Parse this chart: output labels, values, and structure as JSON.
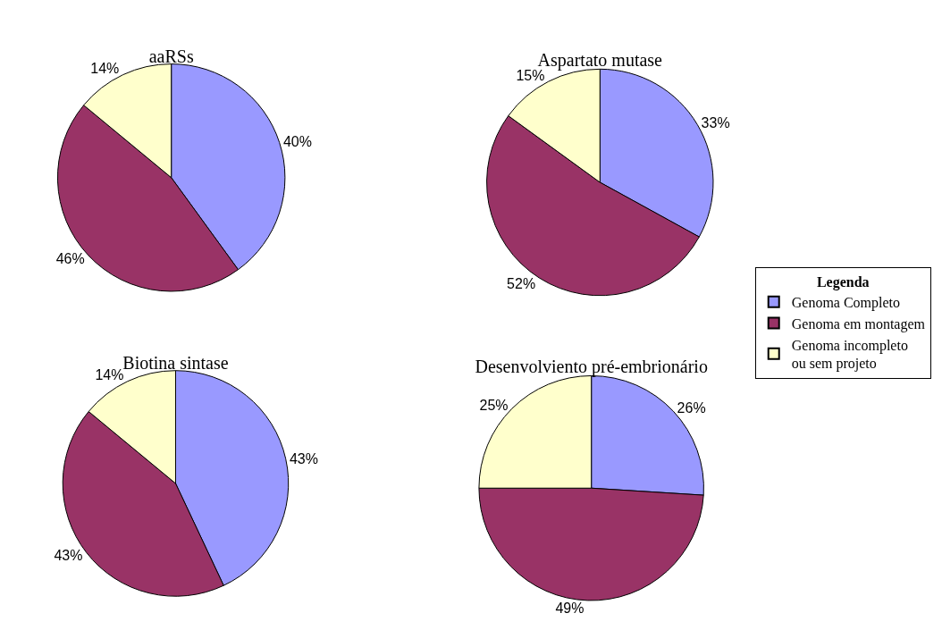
{
  "chart_data": [
    {
      "type": "pie",
      "title": "aaRSs",
      "categories": [
        "Genoma Completo",
        "Genoma em montagem",
        "Genoma incompleto ou sem projeto"
      ],
      "values": [
        40,
        46,
        14
      ],
      "colors": [
        "#9999ff",
        "#993366",
        "#ffffcc"
      ],
      "value_labels": [
        "40%",
        "46%",
        "14%"
      ],
      "legend": "right",
      "legend_title": "Legenda"
    },
    {
      "type": "pie",
      "title": "Aspartato mutase",
      "categories": [
        null,
        null,
        null
      ],
      "values": [
        33,
        52,
        15
      ],
      "colors": [
        "#9999ff",
        "#993366",
        "#ffffcc"
      ],
      "value_labels": [
        "33%",
        "52%",
        "15%"
      ]
    },
    {
      "type": "pie",
      "title": "Biotina sintase",
      "categories": [
        null,
        null,
        null
      ],
      "values": [
        43,
        43,
        14
      ],
      "colors": [
        "#9999ff",
        "#993366",
        "#ffffcc"
      ],
      "value_labels": [
        "43%",
        "43%",
        "14%"
      ]
    },
    {
      "type": "pie",
      "title": "Desenvolviento pré-embrionário",
      "categories": [
        null,
        null,
        null
      ],
      "values": [
        26,
        49,
        25
      ],
      "colors": [
        "#9999ff",
        "#993366",
        "#ffffcc"
      ],
      "value_labels": [
        "26%",
        "49%",
        "25%"
      ]
    }
  ]
}
